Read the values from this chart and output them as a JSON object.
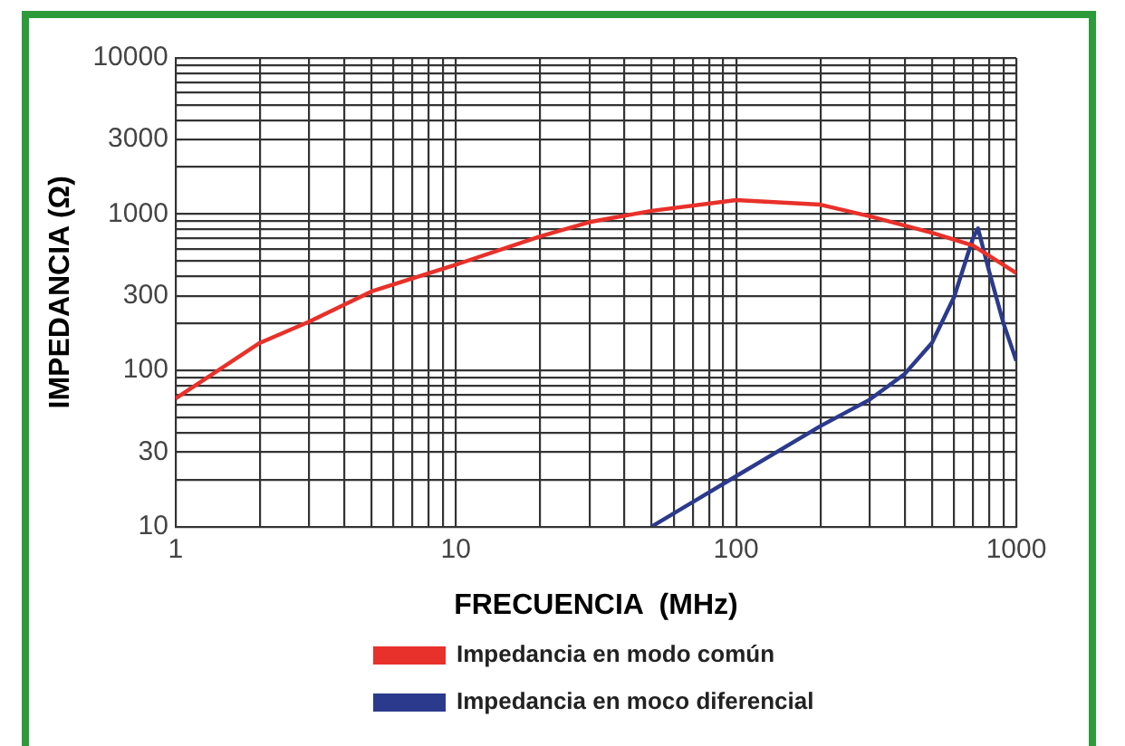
{
  "chart_data": {
    "type": "line",
    "xlabel": "FRECUENCIA  (MHz)",
    "ylabel": "IMPEDANCIA (Ω)",
    "log": "xy",
    "grid": true,
    "legend": "bottom",
    "marker": "none",
    "line_style": "solid",
    "xlim": [
      1,
      1000
    ],
    "ylim": [
      10,
      10000
    ],
    "xticks": [
      1,
      {
        "value": 2,
        "label": null
      },
      {
        "value": 3,
        "label": null
      },
      {
        "value": 4,
        "label": null
      },
      {
        "value": 5,
        "label": null
      },
      {
        "value": 6,
        "label": null
      },
      {
        "value": 7,
        "label": null
      },
      {
        "value": 8,
        "label": null
      },
      {
        "value": 9,
        "label": null
      },
      10,
      {
        "value": 20,
        "label": null
      },
      {
        "value": 30,
        "label": null
      },
      {
        "value": 40,
        "label": null
      },
      {
        "value": 50,
        "label": null
      },
      {
        "value": 60,
        "label": null
      },
      {
        "value": 70,
        "label": null
      },
      {
        "value": 80,
        "label": null
      },
      {
        "value": 90,
        "label": null
      },
      100,
      {
        "value": 200,
        "label": null
      },
      {
        "value": 300,
        "label": null
      },
      {
        "value": 400,
        "label": null
      },
      {
        "value": 500,
        "label": null
      },
      {
        "value": 600,
        "label": null
      },
      {
        "value": 700,
        "label": null
      },
      {
        "value": 800,
        "label": null
      },
      {
        "value": 900,
        "label": null
      },
      1000
    ],
    "yticks": [
      10,
      {
        "value": 20,
        "label": null
      },
      30,
      {
        "value": 40,
        "label": null
      },
      {
        "value": 50,
        "label": null
      },
      {
        "value": 60,
        "label": null
      },
      {
        "value": 70,
        "label": null
      },
      {
        "value": 80,
        "label": null
      },
      {
        "value": 90,
        "label": null
      },
      100,
      {
        "value": 200,
        "label": null
      },
      300,
      {
        "value": 400,
        "label": null
      },
      {
        "value": 500,
        "label": null
      },
      {
        "value": 600,
        "label": null
      },
      {
        "value": 700,
        "label": null
      },
      {
        "value": 800,
        "label": null
      },
      {
        "value": 900,
        "label": null
      },
      1000,
      {
        "value": 2000,
        "label": null
      },
      3000,
      {
        "value": 4000,
        "label": null
      },
      {
        "value": 5000,
        "label": null
      },
      {
        "value": 6000,
        "label": null
      },
      {
        "value": 7000,
        "label": null
      },
      {
        "value": 8000,
        "label": null
      },
      {
        "value": 9000,
        "label": null
      },
      10000
    ],
    "series": [
      {
        "name": "Impedancia en modo común",
        "color": "#e8312a",
        "x": [
          1,
          2,
          3,
          5,
          10,
          20,
          30,
          50,
          100,
          200,
          300,
          500,
          700,
          1000
        ],
        "values": [
          66,
          150,
          205,
          320,
          475,
          720,
          890,
          1050,
          1230,
          1150,
          970,
          760,
          630,
          420
        ]
      },
      {
        "name": "Impedancia en moco diferencial",
        "color": "#2b3a8c",
        "x": [
          50,
          100,
          200,
          300,
          400,
          500,
          600,
          700,
          730,
          800,
          900,
          1000
        ],
        "values": [
          10,
          21,
          44,
          65,
          95,
          150,
          295,
          700,
          810,
          430,
          200,
          115
        ]
      }
    ]
  }
}
